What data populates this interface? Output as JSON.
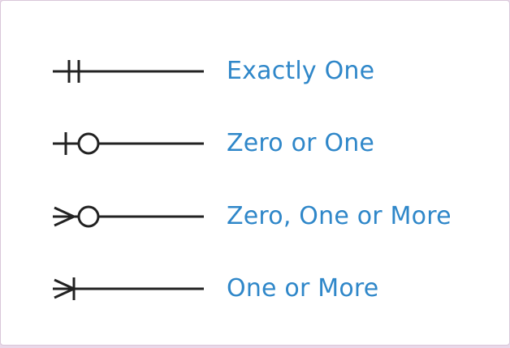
{
  "legend": {
    "items": [
      {
        "label": "Exactly One",
        "symbol": "exactly-one-notation-icon"
      },
      {
        "label": "Zero or One",
        "symbol": "zero-or-one-notation-icon"
      },
      {
        "label": "Zero, One or More",
        "symbol": "zero-one-or-more-notation-icon"
      },
      {
        "label": "One or More",
        "symbol": "one-or-more-notation-icon"
      }
    ]
  },
  "colors": {
    "label_text": "#2f87c9",
    "symbol_stroke": "#222222",
    "background": "#ffffff"
  }
}
